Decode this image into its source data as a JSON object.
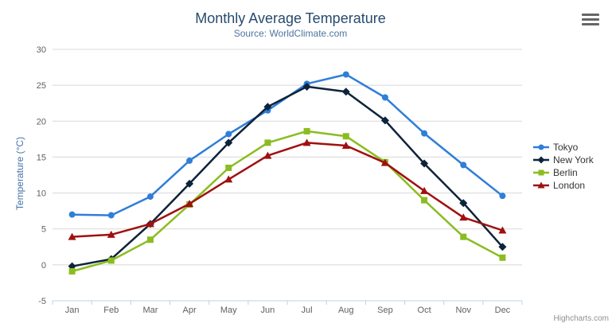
{
  "header": {
    "title": "Monthly Average Temperature",
    "subtitle": "Source: WorldClimate.com"
  },
  "credit": "Highcharts.com",
  "style": {
    "title_color": "#274b6d",
    "subtitle_color": "#4d759e",
    "axis_title_color": "#4572a7",
    "tick_label_color": "#606060",
    "grid_color": "#d8d8d8",
    "axis_line_color": "#c0d0e0",
    "legend_text_color": "#333333",
    "credit_color": "#909090",
    "menu_icon_color": "#666666"
  },
  "chart_data": {
    "type": "line",
    "title": "Monthly Average Temperature",
    "subtitle": "Source: WorldClimate.com",
    "categories": [
      "Jan",
      "Feb",
      "Mar",
      "Apr",
      "May",
      "Jun",
      "Jul",
      "Aug",
      "Sep",
      "Oct",
      "Nov",
      "Dec"
    ],
    "xlabel": "",
    "ylabel": "Temperature (°C)",
    "ylim": [
      -5,
      30
    ],
    "ytick_step": 5,
    "grid": true,
    "legend_position": "right",
    "series": [
      {
        "name": "Tokyo",
        "marker": "circle",
        "color": "#2f7ed8",
        "values": [
          7.0,
          6.9,
          9.5,
          14.5,
          18.2,
          21.5,
          25.2,
          26.5,
          23.3,
          18.3,
          13.9,
          9.6
        ]
      },
      {
        "name": "New York",
        "marker": "diamond",
        "color": "#0d233a",
        "values": [
          -0.2,
          0.8,
          5.7,
          11.3,
          17.0,
          22.0,
          24.8,
          24.1,
          20.1,
          14.1,
          8.6,
          2.5
        ]
      },
      {
        "name": "Berlin",
        "marker": "square",
        "color": "#8bbc21",
        "values": [
          -0.9,
          0.6,
          3.5,
          8.4,
          13.5,
          17.0,
          18.6,
          17.9,
          14.3,
          9.0,
          3.9,
          1.0
        ]
      },
      {
        "name": "London",
        "marker": "triangle",
        "color": "#a01010",
        "values": [
          3.9,
          4.2,
          5.7,
          8.5,
          11.9,
          15.2,
          17.0,
          16.6,
          14.2,
          10.3,
          6.6,
          4.8
        ]
      }
    ]
  }
}
